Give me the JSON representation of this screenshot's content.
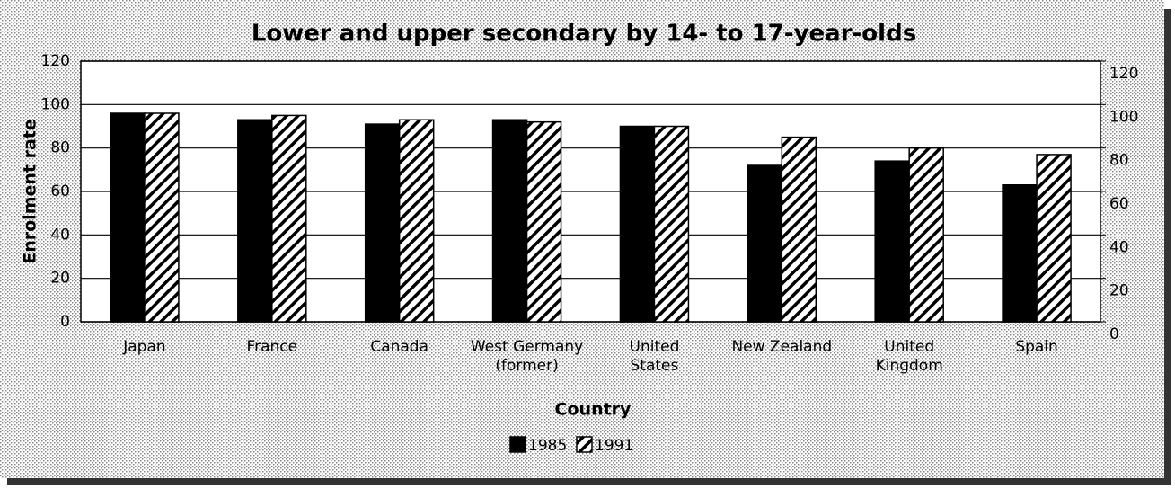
{
  "chart_data": {
    "type": "bar",
    "title": "Lower and upper secondary by 14- to 17-year-olds",
    "ylabel": "Enrolment rate",
    "xlabel": "Country",
    "categories": [
      [
        "Japan"
      ],
      [
        "France"
      ],
      [
        "Canada"
      ],
      [
        "West Germany",
        "(former)"
      ],
      [
        "United",
        "States"
      ],
      [
        "New Zealand"
      ],
      [
        "United",
        "Kingdom"
      ],
      [
        "Spain"
      ]
    ],
    "series": [
      {
        "name": "1985",
        "color": "#000000",
        "pattern": "solid",
        "values": [
          96,
          93,
          91,
          93,
          90,
          72,
          74,
          63
        ]
      },
      {
        "name": "1991",
        "color": "#000000",
        "pattern": "hatch",
        "values": [
          96,
          95,
          93,
          92,
          90,
          85,
          80,
          77
        ]
      }
    ],
    "ylim": [
      0,
      120
    ],
    "yticks": [
      0,
      20,
      40,
      60,
      80,
      100,
      120
    ],
    "y2lim": [
      0,
      120
    ],
    "y2ticks": [
      0,
      20,
      40,
      60,
      80,
      100,
      120
    ],
    "grid": true,
    "legend": "bottom"
  }
}
